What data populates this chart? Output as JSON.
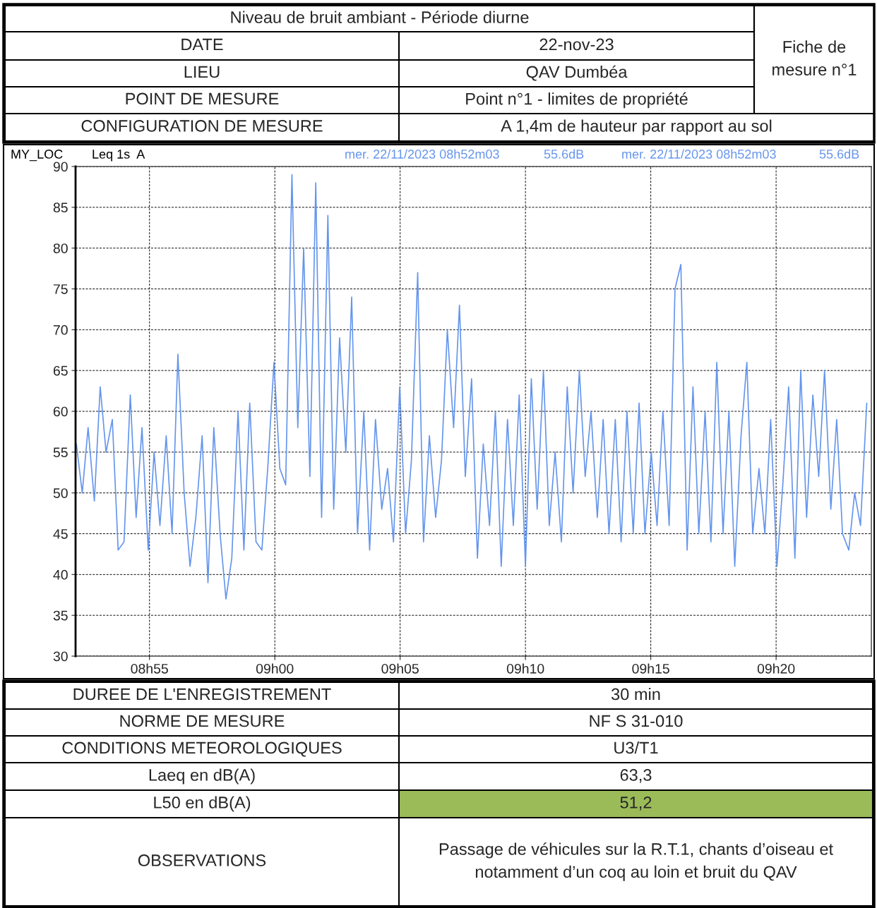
{
  "chart_data": {
    "type": "line",
    "title": "Niveau de bruit ambiant - Période diurne",
    "x": [
      "2023-11-22T08:52:05",
      "2023-11-22T08:52:19",
      "2023-11-22T08:52:33",
      "2023-11-22T08:52:48",
      "2023-11-22T08:53:02",
      "2023-11-22T08:53:16",
      "2023-11-22T08:53:31",
      "2023-11-22T08:53:45",
      "2023-11-22T08:53:59",
      "2023-11-22T08:54:14",
      "2023-11-22T08:54:28",
      "2023-11-22T08:54:42",
      "2023-11-22T08:54:57",
      "2023-11-22T08:55:11",
      "2023-11-22T08:55:25",
      "2023-11-22T08:55:40",
      "2023-11-22T08:55:54",
      "2023-11-22T08:56:08",
      "2023-11-22T08:56:23",
      "2023-11-22T08:56:37",
      "2023-11-22T08:56:51",
      "2023-11-22T08:57:06",
      "2023-11-22T08:57:20",
      "2023-11-22T08:57:34",
      "2023-11-22T08:57:49",
      "2023-11-22T08:58:03",
      "2023-11-22T08:58:17",
      "2023-11-22T08:58:32",
      "2023-11-22T08:58:46",
      "2023-11-22T08:59:00",
      "2023-11-22T08:59:15",
      "2023-11-22T08:59:29",
      "2023-11-22T08:59:43",
      "2023-11-22T08:59:58",
      "2023-11-22T09:00:12",
      "2023-11-22T09:00:26",
      "2023-11-22T09:00:41",
      "2023-11-22T09:00:55",
      "2023-11-22T09:01:09",
      "2023-11-22T09:01:24",
      "2023-11-22T09:01:38",
      "2023-11-22T09:01:52",
      "2023-11-22T09:02:07",
      "2023-11-22T09:02:21",
      "2023-11-22T09:02:35",
      "2023-11-22T09:02:50",
      "2023-11-22T09:03:04",
      "2023-11-22T09:03:18",
      "2023-11-22T09:03:33",
      "2023-11-22T09:03:47",
      "2023-11-22T09:04:01",
      "2023-11-22T09:04:16",
      "2023-11-22T09:04:30",
      "2023-11-22T09:04:44",
      "2023-11-22T09:04:59",
      "2023-11-22T09:05:13",
      "2023-11-22T09:05:27",
      "2023-11-22T09:05:42",
      "2023-11-22T09:05:56",
      "2023-11-22T09:06:10",
      "2023-11-22T09:06:25",
      "2023-11-22T09:06:39",
      "2023-11-22T09:06:53",
      "2023-11-22T09:07:08",
      "2023-11-22T09:07:22",
      "2023-11-22T09:07:36",
      "2023-11-22T09:07:51",
      "2023-11-22T09:08:05",
      "2023-11-22T09:08:19",
      "2023-11-22T09:08:34",
      "2023-11-22T09:08:48",
      "2023-11-22T09:09:02",
      "2023-11-22T09:09:17",
      "2023-11-22T09:09:31",
      "2023-11-22T09:09:45",
      "2023-11-22T09:10:00",
      "2023-11-22T09:10:14",
      "2023-11-22T09:10:28",
      "2023-11-22T09:10:43",
      "2023-11-22T09:10:57",
      "2023-11-22T09:11:11",
      "2023-11-22T09:11:26",
      "2023-11-22T09:11:40",
      "2023-11-22T09:11:54",
      "2023-11-22T09:12:09",
      "2023-11-22T09:12:23",
      "2023-11-22T09:12:37",
      "2023-11-22T09:12:52",
      "2023-11-22T09:13:06",
      "2023-11-22T09:13:20",
      "2023-11-22T09:13:35",
      "2023-11-22T09:13:49",
      "2023-11-22T09:14:03",
      "2023-11-22T09:14:18",
      "2023-11-22T09:14:32",
      "2023-11-22T09:14:46",
      "2023-11-22T09:15:01",
      "2023-11-22T09:15:15",
      "2023-11-22T09:15:29",
      "2023-11-22T09:15:44",
      "2023-11-22T09:15:58",
      "2023-11-22T09:16:12",
      "2023-11-22T09:16:27",
      "2023-11-22T09:16:41",
      "2023-11-22T09:16:55",
      "2023-11-22T09:17:10",
      "2023-11-22T09:17:24",
      "2023-11-22T09:17:38",
      "2023-11-22T09:17:53",
      "2023-11-22T09:18:07",
      "2023-11-22T09:18:21",
      "2023-11-22T09:18:36",
      "2023-11-22T09:18:50",
      "2023-11-22T09:19:04",
      "2023-11-22T09:19:19",
      "2023-11-22T09:19:33",
      "2023-11-22T09:19:47",
      "2023-11-22T09:20:02",
      "2023-11-22T09:20:16",
      "2023-11-22T09:20:30",
      "2023-11-22T09:20:45",
      "2023-11-22T09:20:59",
      "2023-11-22T09:21:13",
      "2023-11-22T09:21:28",
      "2023-11-22T09:21:42",
      "2023-11-22T09:21:56",
      "2023-11-22T09:22:11",
      "2023-11-22T09:22:25",
      "2023-11-22T09:22:39",
      "2023-11-22T09:22:54",
      "2023-11-22T09:23:08",
      "2023-11-22T09:23:22",
      "2023-11-22T09:23:37"
    ],
    "series": [
      {
        "color": "#6495ed",
        "values": [
          56,
          50,
          58,
          49,
          63,
          55,
          59,
          43,
          44,
          62,
          47,
          58,
          43,
          55,
          46,
          57,
          45,
          67,
          50,
          41,
          47,
          57,
          39,
          58,
          45,
          37,
          42,
          60,
          43,
          61,
          44,
          43,
          53,
          66,
          53,
          51,
          89,
          58,
          80,
          52,
          88,
          47,
          84,
          48,
          69,
          55,
          74,
          45,
          60,
          43,
          59,
          48,
          53,
          44,
          63,
          45,
          54,
          77,
          44,
          57,
          47,
          54,
          70,
          58,
          73,
          52,
          64,
          42,
          56,
          46,
          60,
          41,
          59,
          46,
          62,
          41,
          64,
          48,
          65,
          46,
          55,
          44,
          63,
          50,
          65,
          52,
          60,
          47,
          59,
          45,
          59,
          44,
          60,
          45,
          61,
          45,
          55,
          46,
          60,
          46,
          75,
          78,
          43,
          63,
          45,
          60,
          44,
          66,
          45,
          60,
          41,
          57,
          66,
          45,
          53,
          45,
          59,
          41,
          51,
          63,
          42,
          65,
          47,
          62,
          52,
          65,
          48,
          59,
          45,
          43,
          50,
          46,
          61
        ]
      }
    ],
    "xlim": [
      "2023-11-22T08:52:03",
      "2023-11-22T09:23:48"
    ],
    "ylim": [
      30,
      90
    ],
    "xticks": [
      {
        "value": "2023-11-22T08:55",
        "label": "08h55"
      },
      {
        "value": "2023-11-22T09:00",
        "label": "09h00"
      },
      {
        "value": "2023-11-22T09:05",
        "label": "09h05"
      },
      {
        "value": "2023-11-22T09:10",
        "label": "09h10"
      },
      {
        "value": "2023-11-22T09:15",
        "label": "09h15"
      },
      {
        "value": "2023-11-22T09:20",
        "label": "09h20"
      }
    ],
    "yticks": [
      30,
      35,
      40,
      45,
      50,
      55,
      60,
      65,
      70,
      75,
      80,
      85,
      90
    ],
    "grid": true,
    "marker": "none",
    "line_style": "solid",
    "annotations": [
      "Fiche de\nmesure n°1",
      "DATE",
      "22-nov-23",
      "LIEU",
      "QAV Dumbéa",
      "POINT DE MESURE",
      "Point n°1 - limites de propriété",
      "CONFIGURATION DE MESURE",
      "A 1,4m de hauteur par rapport au sol",
      "MY_LOC",
      "Leq 1s  A",
      "mer. 22/11/2023 08h52m03",
      "55.6dB",
      "mer. 22/11/2023 08h52m03",
      "55.6dB",
      "DUREE DE L'ENREGISTREMENT",
      "30 min",
      "NORME DE MESURE",
      "NF S 31-010",
      "CONDITIONS METEOROLOGIQUES",
      "U3/T1",
      "Laeq en dB(A)",
      "63,3",
      "L50 en dB(A)",
      "51,2",
      "OBSERVATIONS",
      "Passage de véhicules sur la R.T.1, chants d’oiseau et\nnotamment d’un coq au loin et bruit du QAV"
    ]
  }
}
